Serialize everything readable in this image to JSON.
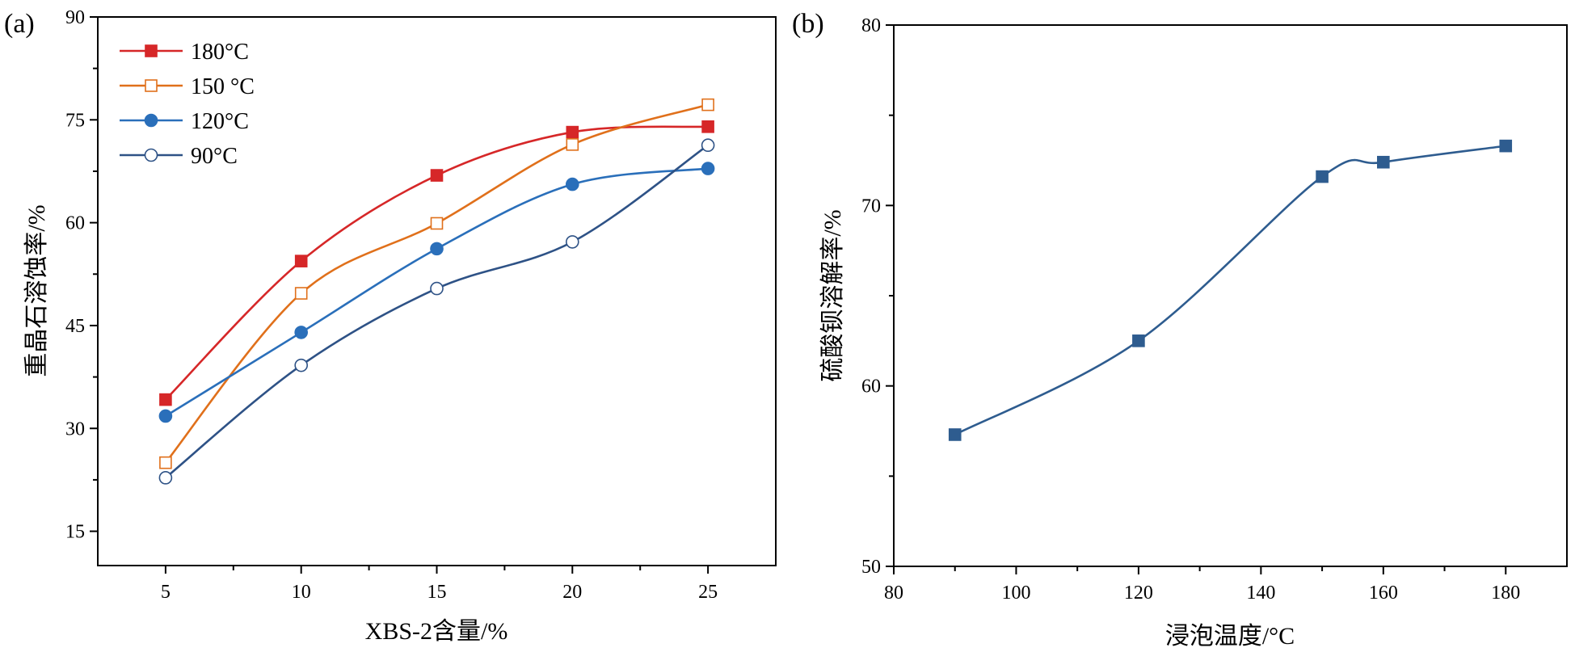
{
  "chart_data": [
    {
      "panel_label": "(a)",
      "type": "line",
      "xlabel": "XBS-2含量/%",
      "ylabel": "重晶石溶蚀率/%",
      "x": [
        5,
        10,
        15,
        20,
        25
      ],
      "xlim": [
        2.5,
        27.5
      ],
      "ylim": [
        10,
        90
      ],
      "xticks": [
        5,
        10,
        15,
        20,
        25
      ],
      "yticks": [
        15,
        30,
        45,
        60,
        75,
        90
      ],
      "legend_position": "top-left",
      "series": [
        {
          "name": "180°C",
          "values": [
            34.2,
            54.4,
            66.9,
            73.2,
            74.0
          ],
          "color": "#d62728",
          "marker": "square",
          "filled": true
        },
        {
          "name": "150 °C",
          "values": [
            25.0,
            49.7,
            59.9,
            71.4,
            77.2
          ],
          "color": "#e0701b",
          "marker": "square",
          "filled": false
        },
        {
          "name": "120°C",
          "values": [
            31.8,
            44.0,
            56.2,
            65.6,
            67.9
          ],
          "color": "#2a6fba",
          "marker": "circle",
          "filled": true
        },
        {
          "name": "90°C",
          "values": [
            22.8,
            39.2,
            50.4,
            57.2,
            71.3
          ],
          "color": "#2e5286",
          "marker": "circle",
          "filled": false
        }
      ]
    },
    {
      "panel_label": "(b)",
      "type": "line",
      "xlabel": "浸泡温度/°C",
      "ylabel": "硫酸钡溶解率/%",
      "x": [
        90,
        120,
        150,
        160,
        180
      ],
      "xlim": [
        80,
        190
      ],
      "ylim": [
        50,
        80
      ],
      "xticks": [
        80,
        100,
        120,
        140,
        160,
        180
      ],
      "yticks": [
        50,
        60,
        70,
        80
      ],
      "series": [
        {
          "values": [
            57.3,
            62.5,
            71.6,
            72.4,
            73.3
          ],
          "color": "#2e5c8f",
          "marker": "square",
          "filled": true
        }
      ]
    }
  ]
}
